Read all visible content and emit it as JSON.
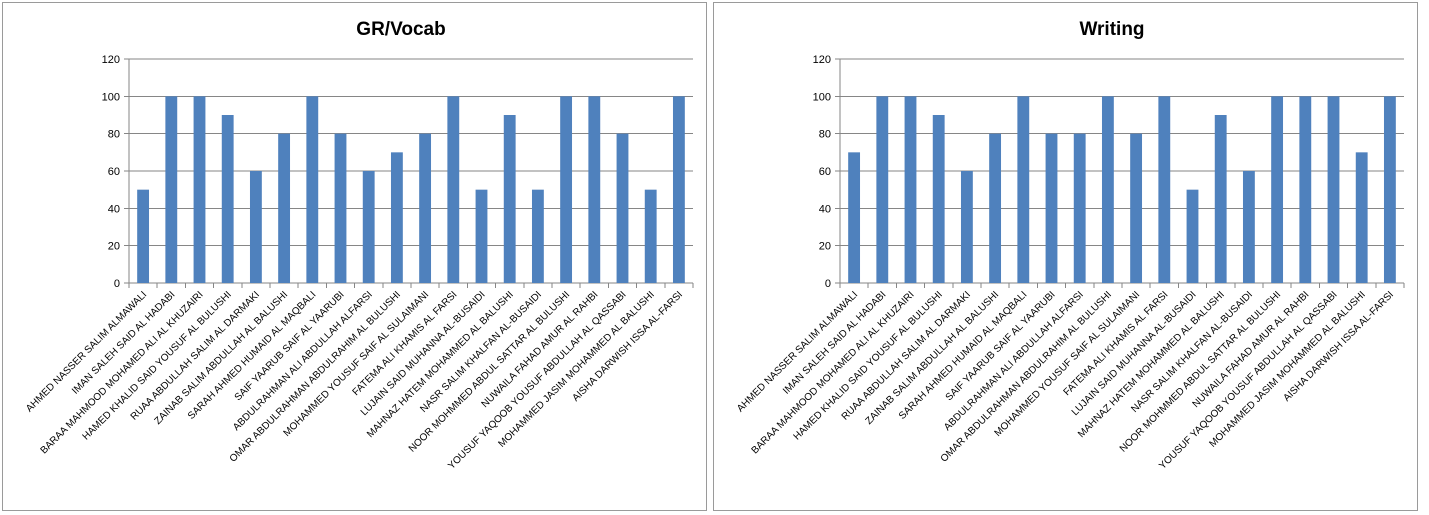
{
  "chart_data": [
    {
      "type": "bar",
      "title": "GR/Vocab",
      "xlabel": "",
      "ylabel": "",
      "ylim": [
        0,
        120
      ],
      "yticks": [
        0,
        20,
        40,
        60,
        80,
        100,
        120
      ],
      "grid": true,
      "legend": "none",
      "bar_color": "#4f81bd",
      "categories": [
        "AHMED NASSER SALIM ALMAWALI",
        "IMAN SALEH SAID AL HADABI",
        "BARAA MAHMOOD MOHAMED ALI AL KHUZAIRI",
        "HAMED KHALID SAID YOUSUF AL BULUSHI",
        "RUAA ABDULLAH SALIM AL DARMAKI",
        "ZAINAB SALIM ABDULLAH AL BALUSHI",
        "SARAH AHMED HUMAID AL MAQBALI",
        "SAIF YAARUB SAIF AL YAARUBI",
        "ABDULRAHMAN ALI ABDULLAH ALFARSI",
        "OMAR ABDULRAHMAN ABDULRAHIM AL BULUSHI",
        "MOHAMMED YOUSUF SAIF AL SULAIMANI",
        "FATEMA ALI KHAMIS AL FARSI",
        "LUJAIN SAID MUHANNA AL-BUSAIDI",
        "MAHNAZ HATEM MOHAMMED AL BALUSHI",
        "NASR SALIM KHALFAN AL-BUSAIDI",
        "NOOR MOHMMED ABDUL SATTAR AL BULUSHI",
        "NUWAILA FAHAD AMUR AL RAHBI",
        "YOUSUF YAQOOB YOUSUF ABDULLAH AL QASSABI",
        "MOHAMMED JASIM MOHAMMED AL BALUSHI",
        "AISHA DARWISH ISSA AL-FARSI"
      ],
      "values": [
        50,
        100,
        100,
        90,
        60,
        80,
        100,
        80,
        60,
        70,
        80,
        100,
        50,
        90,
        50,
        100,
        100,
        80,
        50,
        100
      ]
    },
    {
      "type": "bar",
      "title": "Writing",
      "xlabel": "",
      "ylabel": "",
      "ylim": [
        0,
        120
      ],
      "yticks": [
        0,
        20,
        40,
        60,
        80,
        100,
        120
      ],
      "grid": true,
      "legend": "none",
      "bar_color": "#4f81bd",
      "categories": [
        "AHMED NASSER SALIM ALMAWALI",
        "IMAN SALEH SAID AL HADABI",
        "BARAA MAHMOOD MOHAMED ALI AL KHUZAIRI",
        "HAMED KHALID SAID YOUSUF AL BULUSHI",
        "RUAA ABDULLAH SALIM AL DARMAKI",
        "ZAINAB SALIM ABDULLAH AL BALUSHI",
        "SARAH AHMED HUMAID AL MAQBALI",
        "SAIF YAARUB SAIF AL YAARUBI",
        "ABDULRAHMAN ALI ABDULLAH ALFARSI",
        "OMAR ABDULRAHMAN ABDULRAHIM AL BULUSHI",
        "MOHAMMED YOUSUF SAIF AL SULAIMANI",
        "FATEMA ALI KHAMIS AL FARSI",
        "LUJAIN SAID MUHANNA AL-BUSAIDI",
        "MAHNAZ HATEM MOHAMMED AL BALUSHI",
        "NASR SALIM KHALFAN AL-BUSAIDI",
        "NOOR MOHMMED ABDUL SATTAR AL BULUSHI",
        "NUWAILA FAHAD AMUR AL RAHBI",
        "YOUSUF YAQOOB YOUSUF ABDULLAH AL QASSABI",
        "MOHAMMED JASIM MOHAMMED AL BALUSHI",
        "AISHA DARWISH ISSA AL-FARSI"
      ],
      "values": [
        70,
        100,
        100,
        90,
        60,
        80,
        100,
        80,
        80,
        100,
        80,
        100,
        50,
        90,
        60,
        100,
        100,
        100,
        70,
        100
      ]
    }
  ]
}
